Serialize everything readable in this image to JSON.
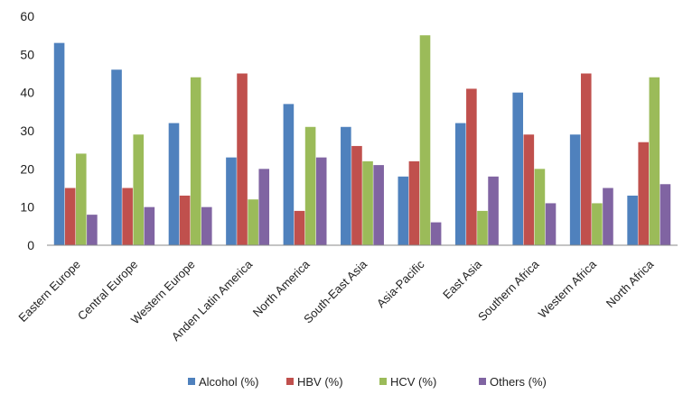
{
  "chart_data": {
    "type": "bar",
    "categories": [
      "Eastern Europe",
      "Central Europe",
      "Western Europe",
      "Anden Latin America",
      "North America",
      "South-East Asia",
      "Asia-Pacific",
      "East Asia",
      "Southern Africa",
      "Western Africa",
      "North Africa"
    ],
    "series": [
      {
        "name": "Alcohol (%)",
        "color": "#4F81BD",
        "values": [
          53,
          46,
          32,
          23,
          37,
          31,
          18,
          32,
          40,
          29,
          13
        ]
      },
      {
        "name": "HBV (%)",
        "color": "#C0504D",
        "values": [
          15,
          15,
          13,
          45,
          9,
          26,
          22,
          41,
          29,
          45,
          27
        ]
      },
      {
        "name": "HCV (%)",
        "color": "#9BBB59",
        "values": [
          24,
          29,
          44,
          12,
          31,
          22,
          55,
          9,
          20,
          11,
          44
        ]
      },
      {
        "name": "Others (%)",
        "color": "#8064A2",
        "values": [
          8,
          10,
          10,
          20,
          23,
          21,
          6,
          18,
          11,
          15,
          16
        ]
      }
    ],
    "yticks": [
      "0",
      "10",
      "20",
      "30",
      "40",
      "50",
      "60"
    ],
    "ylim": [
      0,
      60
    ],
    "grid": false,
    "legend": "bottom"
  }
}
